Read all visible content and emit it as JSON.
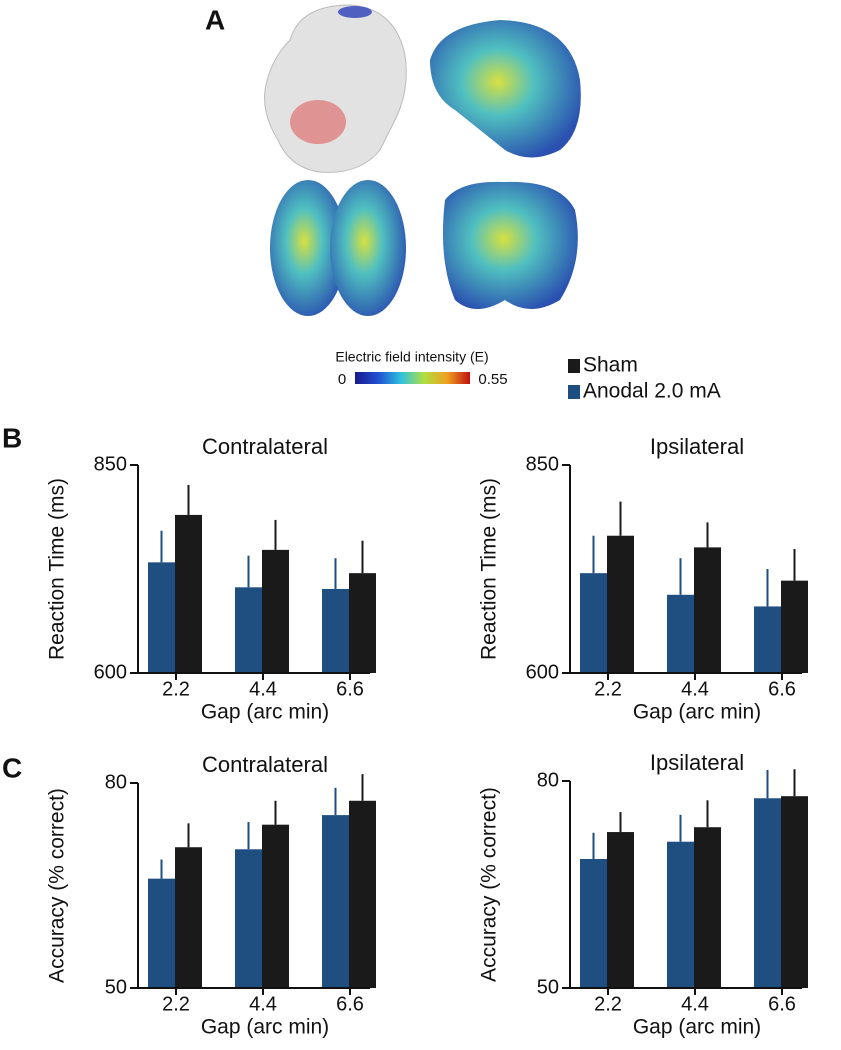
{
  "panels": [
    "A",
    "B",
    "C"
  ],
  "colorbar": {
    "label": "Electric field intensity (E)",
    "min": 0,
    "max": 0.55
  },
  "chart_data": [
    {
      "type": "bar",
      "title": "Contralateral",
      "xlabel": "Gap (arc min)",
      "ylabel": "Reaction Time (ms)",
      "categories": [
        "2.2",
        "4.4",
        "6.6"
      ],
      "ylim": [
        600,
        850
      ],
      "yticks": [
        600,
        850
      ],
      "series": [
        {
          "name": "Anodal 2.0 mA",
          "color": "#1f4e80",
          "values": [
            733,
            703,
            701
          ],
          "errors": [
            38,
            38,
            37
          ]
        },
        {
          "name": "Sham",
          "color": "#1a1a1a",
          "values": [
            790,
            748,
            720
          ],
          "errors": [
            36,
            36,
            39
          ]
        }
      ]
    },
    {
      "type": "bar",
      "title": "Ipsilateral",
      "xlabel": "Gap (arc min)",
      "ylabel": "Reaction Time (ms)",
      "categories": [
        "2.2",
        "4.4",
        "6.6"
      ],
      "ylim": [
        600,
        850
      ],
      "yticks": [
        600,
        850
      ],
      "series": [
        {
          "name": "Anodal 2.0 mA",
          "color": "#1f4e80",
          "values": [
            720,
            694,
            680
          ],
          "errors": [
            45,
            44,
            45
          ]
        },
        {
          "name": "Sham",
          "color": "#1a1a1a",
          "values": [
            765,
            751,
            711
          ],
          "errors": [
            41,
            30,
            38
          ]
        }
      ]
    },
    {
      "type": "bar",
      "title": "Contralateral",
      "xlabel": "Gap (arc min)",
      "ylabel": "Accuracy (% correct)",
      "categories": [
        "2.2",
        "4.4",
        "6.6"
      ],
      "ylim": [
        50,
        80
      ],
      "yticks": [
        50,
        80
      ],
      "series": [
        {
          "name": "Anodal 2.0 mA",
          "color": "#1f4e80",
          "values": [
            66.0,
            70.3,
            75.3
          ],
          "errors": [
            2.8,
            4.0,
            4.0
          ]
        },
        {
          "name": "Sham",
          "color": "#1a1a1a",
          "values": [
            70.6,
            73.9,
            77.4
          ],
          "errors": [
            3.5,
            3.5,
            3.9
          ]
        }
      ]
    },
    {
      "type": "bar",
      "title": "Ipsilateral",
      "xlabel": "Gap (arc min)",
      "ylabel": "Accuracy (% correct)",
      "categories": [
        "2.2",
        "4.4",
        "6.6"
      ],
      "ylim": [
        50,
        80
      ],
      "yticks": [
        50,
        80
      ],
      "series": [
        {
          "name": "Anodal 2.0 mA",
          "color": "#1f4e80",
          "values": [
            68.7,
            71.2,
            77.5
          ],
          "errors": [
            3.8,
            3.9,
            4.1
          ]
        },
        {
          "name": "Sham",
          "color": "#1a1a1a",
          "values": [
            72.6,
            73.3,
            77.8
          ],
          "errors": [
            2.9,
            3.9,
            3.9
          ]
        }
      ]
    }
  ]
}
